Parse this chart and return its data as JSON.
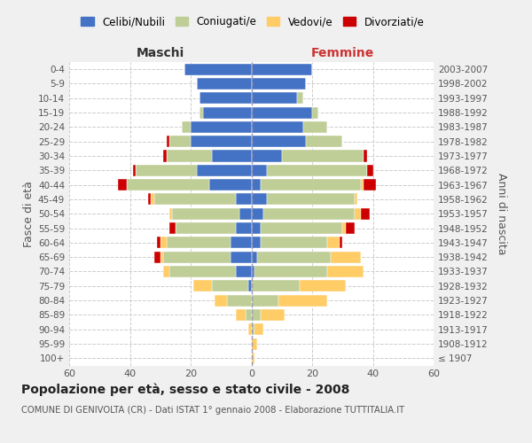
{
  "age_groups": [
    "100+",
    "95-99",
    "90-94",
    "85-89",
    "80-84",
    "75-79",
    "70-74",
    "65-69",
    "60-64",
    "55-59",
    "50-54",
    "45-49",
    "40-44",
    "35-39",
    "30-34",
    "25-29",
    "20-24",
    "15-19",
    "10-14",
    "5-9",
    "0-4"
  ],
  "birth_years": [
    "≤ 1907",
    "1908-1912",
    "1913-1917",
    "1918-1922",
    "1923-1927",
    "1928-1932",
    "1933-1937",
    "1938-1942",
    "1943-1947",
    "1948-1952",
    "1953-1957",
    "1958-1962",
    "1963-1967",
    "1968-1972",
    "1973-1977",
    "1978-1982",
    "1983-1987",
    "1988-1992",
    "1993-1997",
    "1998-2002",
    "2003-2007"
  ],
  "male": {
    "celibi": [
      0,
      0,
      0,
      0,
      0,
      1,
      5,
      7,
      7,
      5,
      4,
      5,
      14,
      18,
      13,
      20,
      20,
      16,
      17,
      18,
      22
    ],
    "coniugati": [
      0,
      0,
      0,
      2,
      8,
      12,
      22,
      22,
      21,
      20,
      22,
      27,
      27,
      20,
      15,
      7,
      3,
      1,
      0,
      0,
      0
    ],
    "vedovi": [
      0,
      0,
      1,
      3,
      4,
      6,
      2,
      1,
      2,
      0,
      1,
      1,
      0,
      0,
      0,
      0,
      0,
      0,
      0,
      0,
      0
    ],
    "divorziati": [
      0,
      0,
      0,
      0,
      0,
      0,
      0,
      2,
      1,
      2,
      0,
      1,
      3,
      1,
      1,
      1,
      0,
      0,
      0,
      0,
      0
    ]
  },
  "female": {
    "nubili": [
      0,
      0,
      0,
      0,
      0,
      0,
      1,
      2,
      3,
      3,
      4,
      5,
      3,
      5,
      10,
      18,
      17,
      20,
      15,
      18,
      20
    ],
    "coniugate": [
      0,
      0,
      1,
      3,
      9,
      16,
      24,
      24,
      22,
      27,
      30,
      29,
      33,
      33,
      27,
      12,
      8,
      2,
      2,
      0,
      0
    ],
    "vedove": [
      1,
      2,
      3,
      8,
      16,
      15,
      12,
      10,
      4,
      1,
      2,
      1,
      1,
      0,
      0,
      0,
      0,
      0,
      0,
      0,
      0
    ],
    "divorziate": [
      0,
      0,
      0,
      0,
      0,
      0,
      0,
      0,
      1,
      3,
      3,
      0,
      4,
      2,
      1,
      0,
      0,
      0,
      0,
      0,
      0
    ]
  },
  "colors": {
    "celibi_nubili": "#4472C4",
    "coniugati": "#BFCD96",
    "vedovi": "#FFCC66",
    "divorziati": "#CC0000"
  },
  "xlim": 60,
  "title": "Popolazione per età, sesso e stato civile - 2008",
  "subtitle": "COMUNE DI GENIVOLTA (CR) - Dati ISTAT 1° gennaio 2008 - Elaborazione TUTTITALIA.IT",
  "ylabel_left": "Fasce di età",
  "ylabel_right": "Anni di nascita",
  "xlabel_maschi": "Maschi",
  "xlabel_femmine": "Femmine",
  "legend_labels": [
    "Celibi/Nubili",
    "Coniugati/e",
    "Vedovi/e",
    "Divorziati/e"
  ],
  "bg_color": "#f0f0f0",
  "plot_bg": "#ffffff"
}
